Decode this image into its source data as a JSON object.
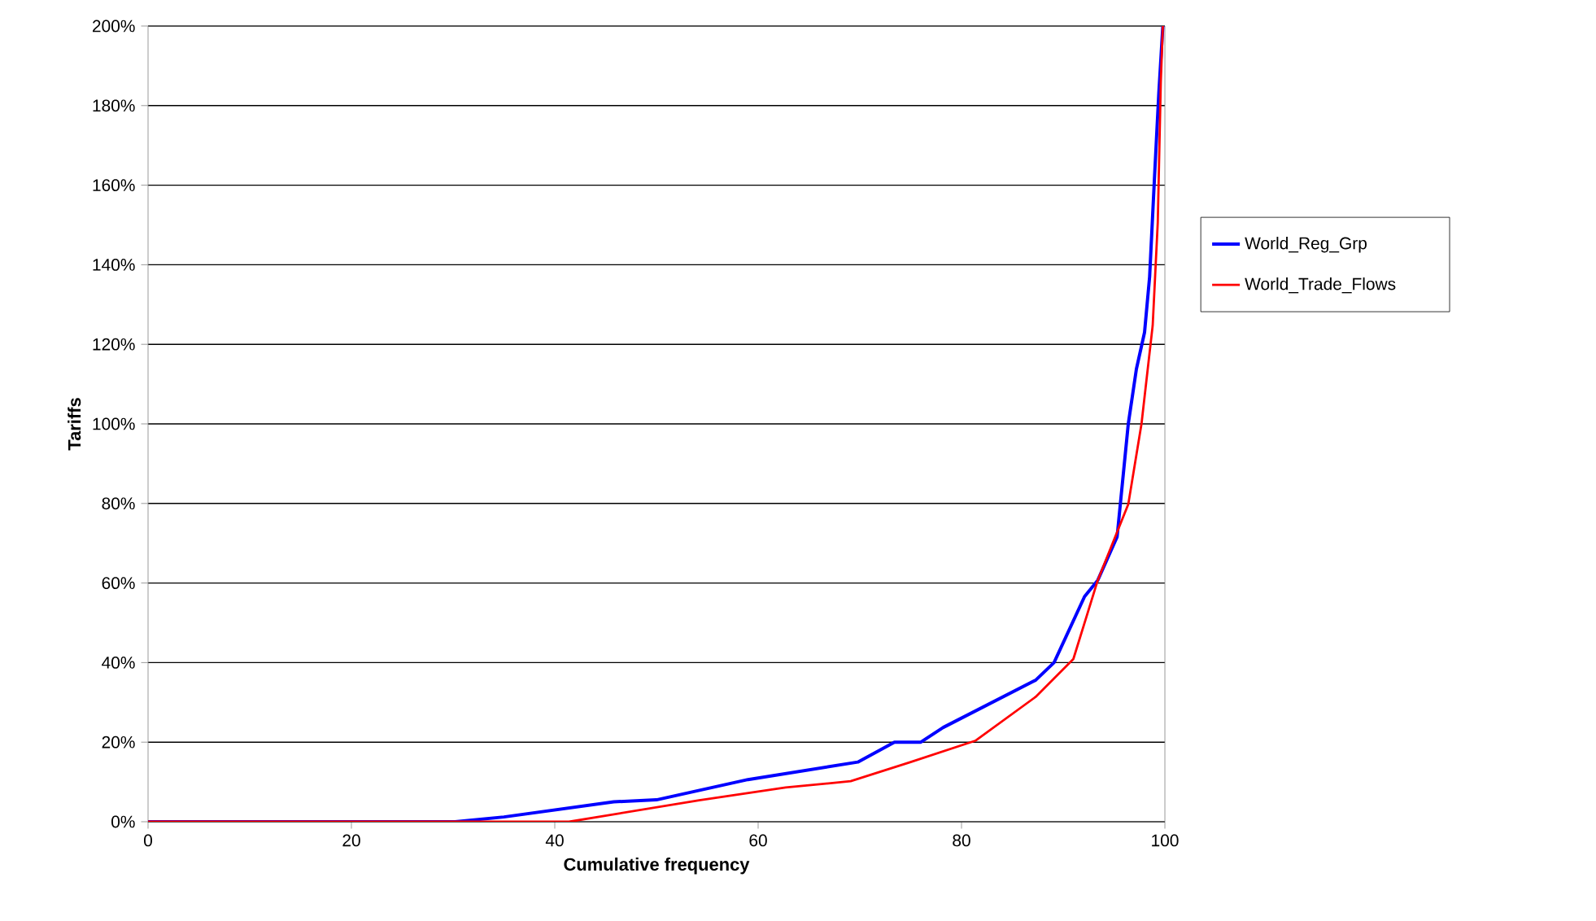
{
  "chart_data": {
    "type": "line",
    "xlabel": "Cumulative frequency",
    "ylabel": "Tariffs",
    "xlim": [
      0,
      100
    ],
    "xticks": [
      0,
      20,
      40,
      60,
      80,
      100
    ],
    "ylim": [
      0,
      200
    ],
    "yticks": [
      {
        "value": 0,
        "label": "0%"
      },
      {
        "value": 20,
        "label": "20%"
      },
      {
        "value": 40,
        "label": "40%"
      },
      {
        "value": 60,
        "label": "60%"
      },
      {
        "value": 80,
        "label": "80%"
      },
      {
        "value": 100,
        "label": "100%"
      },
      {
        "value": 120,
        "label": "120%"
      },
      {
        "value": 140,
        "label": "140%"
      },
      {
        "value": 160,
        "label": "160%"
      },
      {
        "value": 180,
        "label": "180%"
      },
      {
        "value": 200,
        "label": "200%"
      }
    ],
    "grid": "y",
    "legend": "right",
    "marker": "none",
    "series": [
      {
        "name": "World_Reg_Grp",
        "color": "#0000ff",
        "x": [
          0,
          30.2,
          35,
          45.8,
          50,
          59,
          69.8,
          73.4,
          76,
          78.2,
          87.3,
          89.1,
          92.1,
          93.4,
          95.3,
          96.4,
          97.2,
          98,
          98.5,
          99,
          99.4,
          99.8
        ],
        "values": [
          0,
          0,
          1.2,
          5,
          5.5,
          10.6,
          15,
          20,
          20,
          23.7,
          35.6,
          40,
          56.6,
          60.7,
          71.6,
          100,
          113.8,
          123,
          137,
          163,
          183,
          200
        ]
      },
      {
        "name": "World_Trade_Flows",
        "color": "#ff0000",
        "x": [
          0,
          41.4,
          54.2,
          62.7,
          69.1,
          75,
          81.4,
          87.3,
          91,
          93.4,
          96.4,
          97.7,
          98.8,
          99.3,
          99.6,
          99.8
        ],
        "values": [
          0,
          0,
          5.4,
          8.6,
          10.2,
          15,
          20.4,
          31.4,
          40.9,
          60.7,
          79.8,
          100,
          124.7,
          150.6,
          186,
          200
        ]
      }
    ]
  }
}
